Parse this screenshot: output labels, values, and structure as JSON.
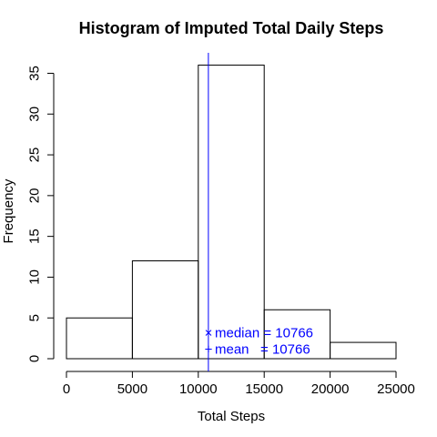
{
  "chart_data": {
    "type": "bar",
    "title": "Histogram of Imputed Total Daily Steps",
    "xlabel": "Total Steps",
    "ylabel": "Frequency",
    "bins": [
      {
        "from": 0,
        "to": 5000,
        "count": 5
      },
      {
        "from": 5000,
        "to": 10000,
        "count": 12
      },
      {
        "from": 10000,
        "to": 15000,
        "count": 36
      },
      {
        "from": 15000,
        "to": 20000,
        "count": 6
      },
      {
        "from": 20000,
        "to": 25000,
        "count": 2
      }
    ],
    "xlim": [
      0,
      25000
    ],
    "ylim": [
      0,
      35
    ],
    "x_ticks": [
      0,
      5000,
      10000,
      15000,
      20000,
      25000
    ],
    "y_ticks": [
      0,
      5,
      10,
      15,
      20,
      25,
      30,
      35
    ],
    "grid": false,
    "reference_line": {
      "x": 10766,
      "color": "#0000ff"
    },
    "legend": {
      "placement": "bottom-center",
      "color": "#0000ff",
      "entries": [
        {
          "symbol": "×",
          "text": "median = 10766"
        },
        {
          "symbol": "+",
          "text": "mean   = 10766"
        }
      ]
    }
  }
}
